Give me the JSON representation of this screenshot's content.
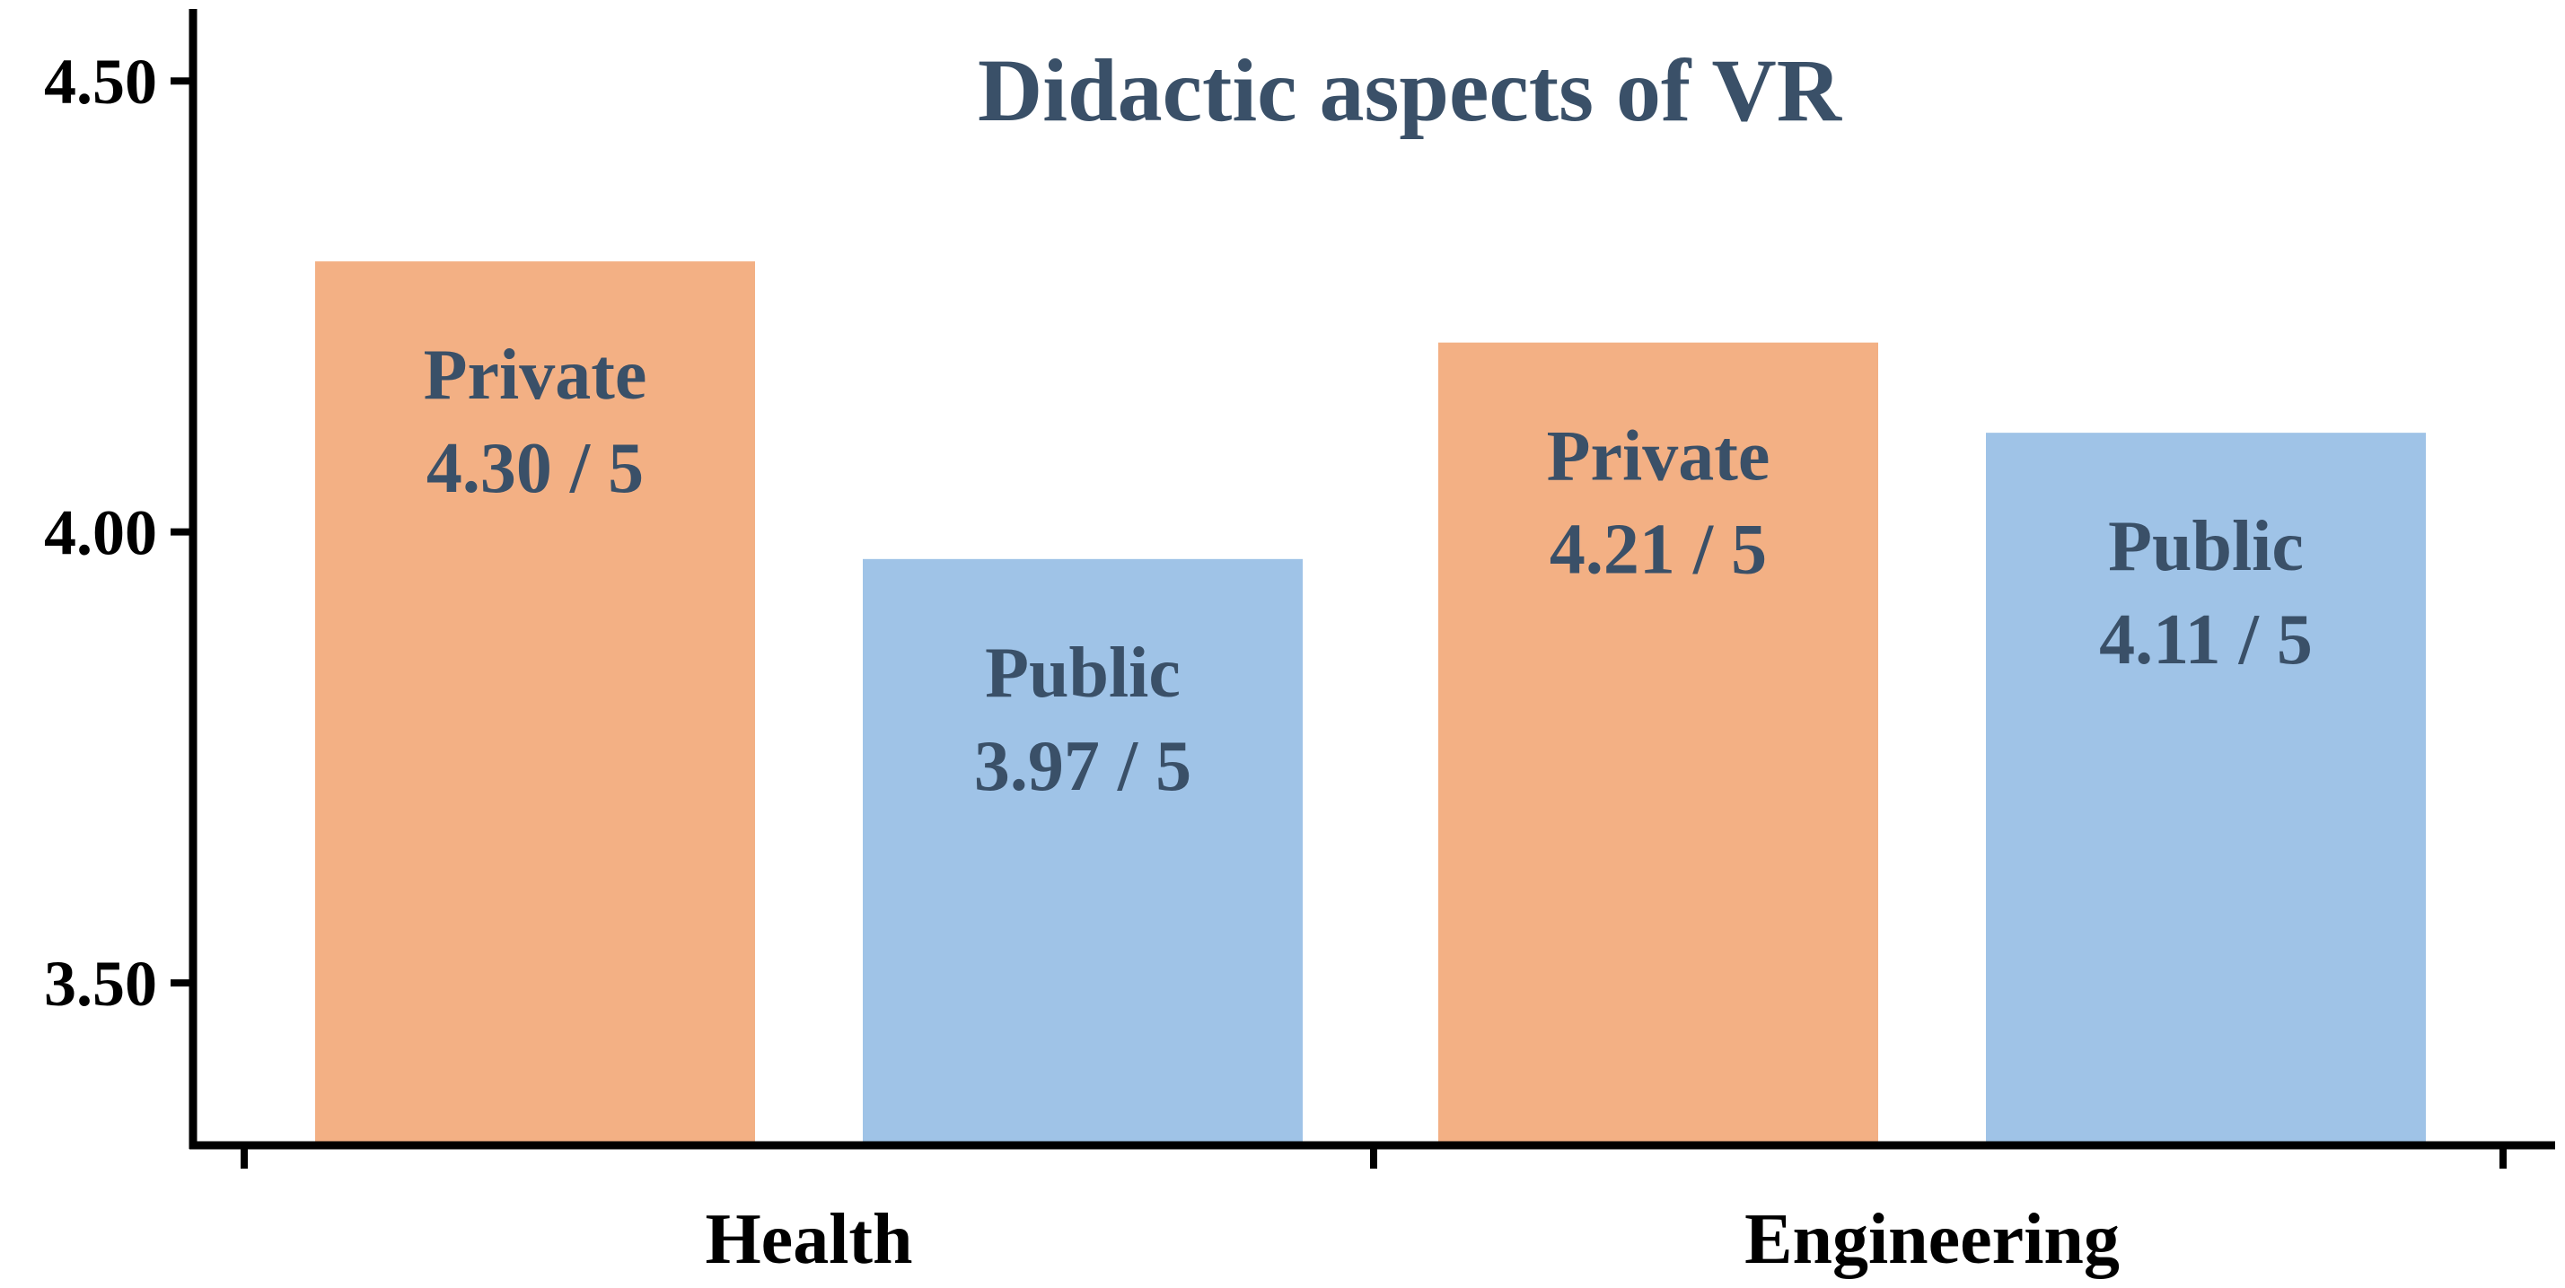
{
  "chart_data": {
    "type": "bar",
    "title": "Didactic aspects of VR",
    "xlabel": "",
    "ylabel": "",
    "categories": [
      "Health",
      "Engineering"
    ],
    "ylim": [
      3.32,
      4.55
    ],
    "yticks": [
      3.5,
      4.0,
      4.5
    ],
    "ytick_labels": [
      "3.50",
      "4.00",
      "4.50"
    ],
    "grid": false,
    "series": [
      {
        "name": "Private",
        "color": "#F3B084",
        "values": [
          4.3,
          4.21
        ],
        "value_labels": [
          "4.30 / 5",
          "4.21 / 5"
        ]
      },
      {
        "name": "Public",
        "color": "#9FC3E7",
        "values": [
          3.97,
          4.11
        ],
        "value_labels": [
          "3.97 / 5",
          "4.11 / 5"
        ]
      }
    ],
    "title_color": "#3A5068",
    "label_color": "#3A5068"
  }
}
